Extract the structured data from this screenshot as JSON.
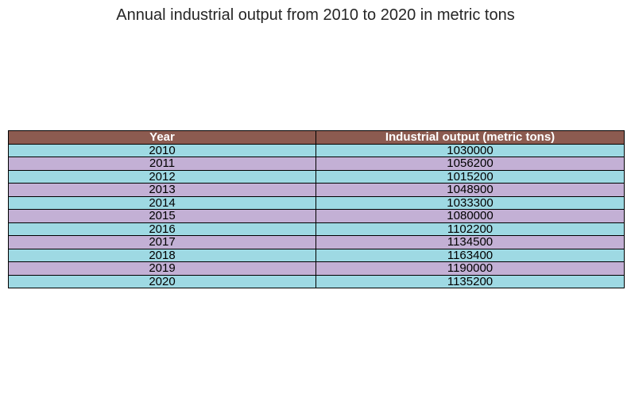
{
  "chart_data": {
    "type": "table",
    "title": "Annual industrial output from 2010 to 2020 in metric tons",
    "columns": [
      "Year",
      "Industrial output (metric tons)"
    ],
    "rows": [
      [
        "2010",
        "1030000"
      ],
      [
        "2011",
        "1056200"
      ],
      [
        "2012",
        "1015200"
      ],
      [
        "2013",
        "1048900"
      ],
      [
        "2014",
        "1033300"
      ],
      [
        "2015",
        "1080000"
      ],
      [
        "2016",
        "1102200"
      ],
      [
        "2017",
        "1134500"
      ],
      [
        "2018",
        "1163400"
      ],
      [
        "2019",
        "1190000"
      ],
      [
        "2020",
        "1135200"
      ]
    ],
    "colors": {
      "header_bg": "#8c5b50",
      "row_even_bg": "#9ed9e3",
      "row_odd_bg": "#c3b0d5"
    }
  }
}
